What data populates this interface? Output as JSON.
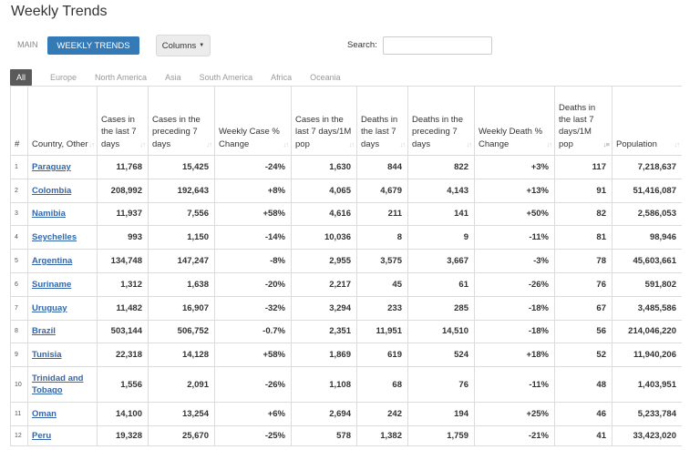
{
  "page": {
    "title": "Weekly Trends"
  },
  "view_tabs": {
    "main": "MAIN",
    "weekly": "WEEKLY TRENDS",
    "columns": "Columns"
  },
  "search": {
    "label": "Search:",
    "value": ""
  },
  "regions": [
    "All",
    "Europe",
    "North America",
    "Asia",
    "South America",
    "Africa",
    "Oceania"
  ],
  "colors": {
    "accent": "#337ab7",
    "link": "#3366aa",
    "active_tab": "#5a5a5a"
  },
  "table": {
    "headers": [
      "#",
      "Country, Other",
      "Cases in the last 7 days",
      "Cases in the preceding 7 days",
      "Weekly Case % Change",
      "Cases in the last 7 days/1M pop",
      "Deaths in the last 7 days",
      "Deaths in the preceding 7 days",
      "Weekly Death % Change",
      "Deaths in the last 7 days/1M pop",
      "Population"
    ],
    "rows": [
      [
        "1",
        "Paraguay",
        "11,768",
        "15,425",
        "-24%",
        "1,630",
        "844",
        "822",
        "+3%",
        "117",
        "7,218,637"
      ],
      [
        "2",
        "Colombia",
        "208,992",
        "192,643",
        "+8%",
        "4,065",
        "4,679",
        "4,143",
        "+13%",
        "91",
        "51,416,087"
      ],
      [
        "3",
        "Namibia",
        "11,937",
        "7,556",
        "+58%",
        "4,616",
        "211",
        "141",
        "+50%",
        "82",
        "2,586,053"
      ],
      [
        "4",
        "Seychelles",
        "993",
        "1,150",
        "-14%",
        "10,036",
        "8",
        "9",
        "-11%",
        "81",
        "98,946"
      ],
      [
        "5",
        "Argentina",
        "134,748",
        "147,247",
        "-8%",
        "2,955",
        "3,575",
        "3,667",
        "-3%",
        "78",
        "45,603,661"
      ],
      [
        "6",
        "Suriname",
        "1,312",
        "1,638",
        "-20%",
        "2,217",
        "45",
        "61",
        "-26%",
        "76",
        "591,802"
      ],
      [
        "7",
        "Uruguay",
        "11,482",
        "16,907",
        "-32%",
        "3,294",
        "233",
        "285",
        "-18%",
        "67",
        "3,485,586"
      ],
      [
        "8",
        "Brazil",
        "503,144",
        "506,752",
        "-0.7%",
        "2,351",
        "11,951",
        "14,510",
        "-18%",
        "56",
        "214,046,220"
      ],
      [
        "9",
        "Tunisia",
        "22,318",
        "14,128",
        "+58%",
        "1,869",
        "619",
        "524",
        "+18%",
        "52",
        "11,940,206"
      ],
      [
        "10",
        "Trinidad and Tobago",
        "1,556",
        "2,091",
        "-26%",
        "1,108",
        "68",
        "76",
        "-11%",
        "48",
        "1,403,951"
      ],
      [
        "11",
        "Oman",
        "14,100",
        "13,254",
        "+6%",
        "2,694",
        "242",
        "194",
        "+25%",
        "46",
        "5,233,784"
      ],
      [
        "12",
        "Peru",
        "19,328",
        "25,670",
        "-25%",
        "578",
        "1,382",
        "1,759",
        "-21%",
        "41",
        "33,423,020"
      ]
    ]
  }
}
